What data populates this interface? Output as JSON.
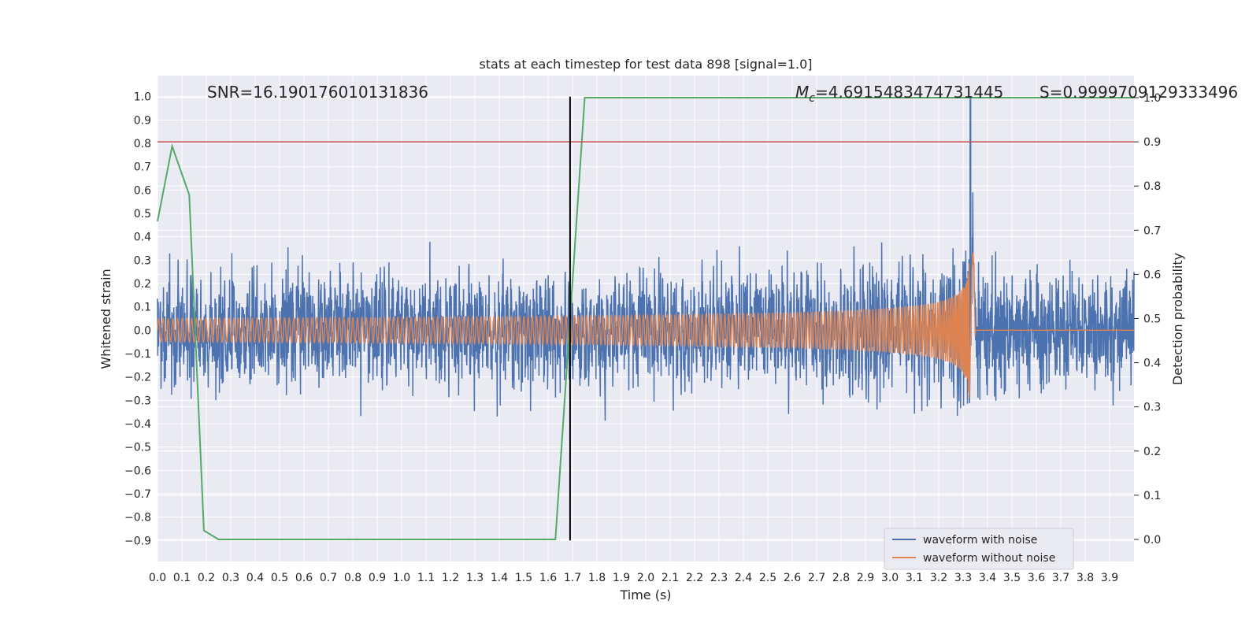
{
  "chart_data": {
    "type": "line",
    "title": "stats at each timestep for test data 898 [signal=1.0]",
    "xlabel": "Time (s)",
    "ylabel": "Whitened strain",
    "ylabel_right": "Detection probability",
    "xlim": [
      0.0,
      4.0
    ],
    "ylim": [
      -0.99,
      1.09
    ],
    "ylim_right": [
      -0.05,
      1.05
    ],
    "x_ticks": [
      "0.0",
      "0.1",
      "0.2",
      "0.3",
      "0.4",
      "0.5",
      "0.6",
      "0.7",
      "0.8",
      "0.9",
      "1.0",
      "1.1",
      "1.2",
      "1.3",
      "1.4",
      "1.5",
      "1.6",
      "1.7",
      "1.8",
      "1.9",
      "2.0",
      "2.1",
      "2.2",
      "2.3",
      "2.4",
      "2.5",
      "2.6",
      "2.7",
      "2.8",
      "2.9",
      "3.0",
      "3.1",
      "3.2",
      "3.3",
      "3.4",
      "3.5",
      "3.6",
      "3.7",
      "3.8",
      "3.9"
    ],
    "y_ticks": [
      "1.0",
      "0.9",
      "0.8",
      "0.7",
      "0.6",
      "0.5",
      "0.4",
      "0.3",
      "0.2",
      "0.1",
      "0.0",
      "−0.1",
      "−0.2",
      "−0.3",
      "−0.4",
      "−0.5",
      "−0.6",
      "−0.7",
      "−0.8",
      "−0.9"
    ],
    "y_ticks_right": [
      "1.0",
      "0.9",
      "0.8",
      "0.7",
      "0.6",
      "0.5",
      "0.4",
      "0.3",
      "0.2",
      "0.1",
      "0.0"
    ],
    "annotations": {
      "snr": "SNR=16.190176010131836",
      "mc_symbol": "M",
      "mc_sub": "c",
      "mc_value": "=4.6915483474731445",
      "s_value": "S=0.9999709129333496"
    },
    "legend": {
      "placement": "lower-right",
      "entries": [
        "waveform with noise",
        "waveform without noise"
      ]
    },
    "colors": {
      "noisy": "#4c72b0",
      "clean": "#dd8452",
      "probability": "#55a868",
      "threshold": "#c44e52",
      "marker": "#000000",
      "axes_bg": "#eaeaf2",
      "grid": "#ffffff"
    },
    "series": [
      {
        "name": "waveform with noise",
        "note_envelope": "dense noise; approx amplitude band [-0.9, 1.0]",
        "peak_time": 3.33,
        "peak_value": 1.0
      },
      {
        "name": "waveform without noise",
        "chirp_start_amplitude": 0.05,
        "chirp_peak_amplitude": 0.42,
        "merger_time": 3.33
      },
      {
        "name": "detection probability",
        "x": [
          0.0,
          0.06,
          0.13,
          0.19,
          0.25,
          1.56,
          1.63,
          1.75,
          4.0
        ],
        "y": [
          0.72,
          0.89,
          0.78,
          0.02,
          0.0,
          0.0,
          0.0,
          1.0,
          1.0
        ]
      }
    ],
    "threshold_right": 0.9,
    "vline_time": 1.69
  }
}
